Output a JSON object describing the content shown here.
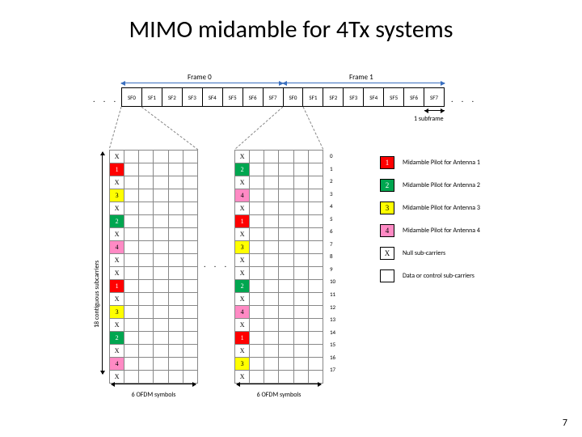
{
  "title": "MIMO midamble for 4Tx systems",
  "page_number": "7",
  "colors": {
    "p1": "#ff0000",
    "p2": "#00a650",
    "p3": "#ffff00",
    "p4": "#ff8ac4",
    "x": "#ffffff",
    "blank": "#ffffff",
    "arrow_blue": "#3a6fbf"
  },
  "frames": {
    "labels": [
      "Frame 0",
      "Frame 1"
    ],
    "subframes": [
      "SF0",
      "SF1",
      "SF2",
      "SF3",
      "SF4",
      "SF5",
      "SF6",
      "SF7",
      "SF0",
      "SF1",
      "SF2",
      "SF3",
      "SF4",
      "SF5",
      "SF6",
      "SF7"
    ],
    "subframe_label": "1 subframe"
  },
  "rb": {
    "ylabel": "18 contiguous subcarriers",
    "xlabel": "6 OFDM symbols",
    "row_indices": [
      "0",
      "1",
      "2",
      "3",
      "4",
      "5",
      "6",
      "7",
      "8",
      "9",
      "10",
      "11",
      "12",
      "13",
      "14",
      "15",
      "16",
      "17"
    ],
    "cols": 6,
    "left_pattern": [
      "X",
      "1",
      "X",
      "3",
      "X",
      "2",
      "X",
      "4",
      "X",
      "X",
      "1",
      "X",
      "3",
      "X",
      "2",
      "X",
      "4",
      "X"
    ],
    "right_pattern": [
      "X",
      "2",
      "X",
      "4",
      "X",
      "1",
      "X",
      "3",
      "X",
      "X",
      "2",
      "X",
      "4",
      "X",
      "1",
      "X",
      "3",
      "X"
    ]
  },
  "legend": [
    {
      "swatch": "1",
      "fill": "p1",
      "text": "Midamble Pilot for Antenna 1"
    },
    {
      "swatch": "2",
      "fill": "p2",
      "text": "Midamble Pilot for Antenna 2"
    },
    {
      "swatch": "3",
      "fill": "p3",
      "text": "Midamble Pilot for Antenna 3"
    },
    {
      "swatch": "4",
      "fill": "p4",
      "text": "Midamble Pilot for Antenna 4"
    },
    {
      "swatch": "X",
      "fill": "x",
      "text": "Null sub-carriers"
    },
    {
      "swatch": "",
      "fill": "blank",
      "text": "Data or control sub-carriers"
    }
  ]
}
